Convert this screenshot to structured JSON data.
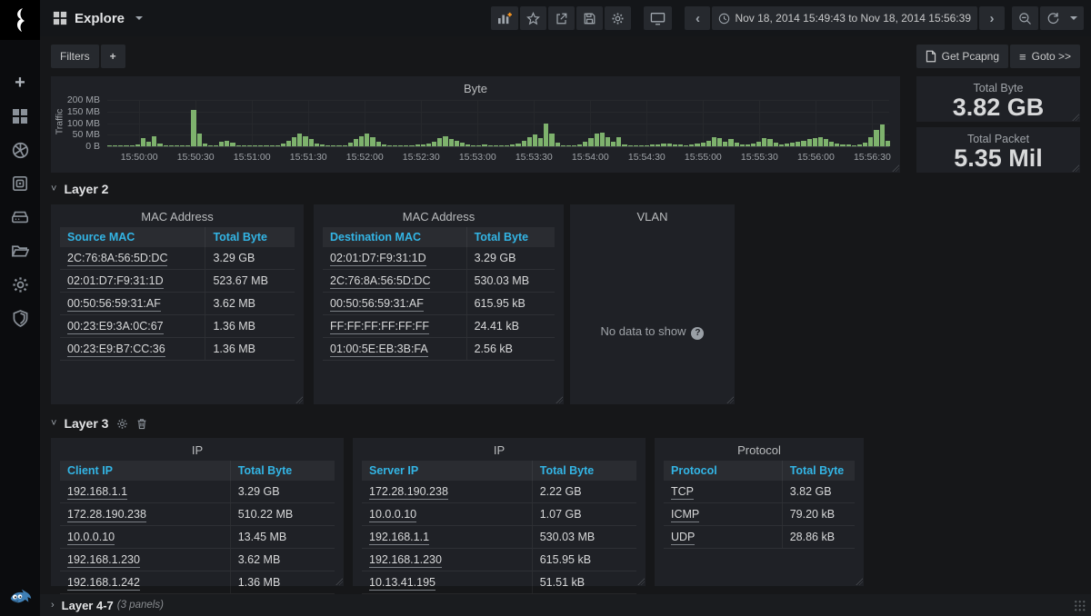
{
  "header": {
    "title": "Explore",
    "time_range": "Nov 18, 2014 15:49:43 to Nov 18, 2014 15:56:39",
    "toolbar_icons": [
      "add-graph",
      "star",
      "share",
      "save",
      "gear",
      "tv-mode",
      "time-back",
      "time-range",
      "time-forward",
      "zoom-out",
      "refresh",
      "refresh-interval-caret"
    ]
  },
  "filters": {
    "label": "Filters",
    "add_label": "+"
  },
  "actions": {
    "get_pcapng": "Get Pcapng",
    "goto": "Goto >>"
  },
  "stats": [
    {
      "title": "Total Byte",
      "value": "3.82 GB"
    },
    {
      "title": "Total Packet",
      "value": "5.35 Mil"
    }
  ],
  "chart_data": {
    "type": "bar",
    "title": "Byte",
    "ylabel": "Traffic",
    "unit": "MB",
    "ylim_mb": [
      0,
      200
    ],
    "y_ticks": [
      "200 MB",
      "150 MB",
      "100 MB",
      "50 MB",
      "0 B"
    ],
    "x_range": "15:49:43 to 15:56:39",
    "x_total_s": 416,
    "x_first_tick_offset_s": 17,
    "x_tick_interval_s": 30,
    "x_ticks": [
      "15:50:00",
      "15:50:30",
      "15:51:00",
      "15:51:30",
      "15:52:00",
      "15:52:30",
      "15:53:00",
      "15:53:30",
      "15:54:00",
      "15:54:30",
      "15:55:00",
      "15:55:30",
      "15:56:00",
      "15:56:30"
    ],
    "grid": true,
    "legend": "none",
    "bar_color": "#7eb26d",
    "values": [
      2,
      3,
      4,
      3,
      5,
      8,
      35,
      20,
      42,
      12,
      5,
      4,
      3,
      4,
      4,
      155,
      55,
      10,
      4,
      3,
      18,
      22,
      15,
      5,
      4,
      3,
      4,
      4,
      3,
      5,
      4,
      10,
      25,
      40,
      55,
      45,
      30,
      12,
      6,
      4,
      5,
      3,
      4,
      15,
      30,
      45,
      55,
      40,
      20,
      8,
      4,
      3,
      5,
      4,
      3,
      6,
      8,
      10,
      20,
      35,
      45,
      30,
      25,
      15,
      8,
      5,
      4,
      6,
      4,
      5,
      3,
      4,
      6,
      12,
      25,
      40,
      50,
      35,
      100,
      55,
      15,
      5,
      4,
      3,
      6,
      20,
      35,
      55,
      60,
      40,
      20,
      40,
      8,
      3,
      2,
      4,
      5,
      6,
      8,
      10,
      12,
      8,
      6,
      5,
      8,
      10,
      15,
      25,
      40,
      35,
      20,
      30,
      15,
      8,
      6,
      10,
      20,
      35,
      30,
      15,
      8,
      10,
      15,
      20,
      25,
      30,
      35,
      40,
      30,
      20,
      12,
      8,
      6,
      5,
      8,
      15,
      40,
      70,
      95,
      25
    ]
  },
  "sections": {
    "layer2": {
      "title": "Layer 2",
      "panels": [
        {
          "title": "MAC Address",
          "table": {
            "columns": [
              "Source MAC",
              "Total Byte"
            ],
            "rows": [
              [
                "2C:76:8A:56:5D:DC",
                "3.29 GB"
              ],
              [
                "02:01:D7:F9:31:1D",
                "523.67 MB"
              ],
              [
                "00:50:56:59:31:AF",
                "3.62 MB"
              ],
              [
                "00:23:E9:3A:0C:67",
                "1.36 MB"
              ],
              [
                "00:23:E9:B7:CC:36",
                "1.36 MB"
              ]
            ]
          }
        },
        {
          "title": "MAC Address",
          "table": {
            "columns": [
              "Destination MAC",
              "Total Byte"
            ],
            "rows": [
              [
                "02:01:D7:F9:31:1D",
                "3.29 GB"
              ],
              [
                "2C:76:8A:56:5D:DC",
                "530.03 MB"
              ],
              [
                "00:50:56:59:31:AF",
                "615.95 kB"
              ],
              [
                "FF:FF:FF:FF:FF:FF",
                "24.41 kB"
              ],
              [
                "01:00:5E:EB:3B:FA",
                "2.56 kB"
              ]
            ]
          }
        },
        {
          "title": "VLAN",
          "empty": "No data to show"
        }
      ]
    },
    "layer3": {
      "title": "Layer 3",
      "panels": [
        {
          "title": "IP",
          "table": {
            "columns": [
              "Client IP",
              "Total Byte"
            ],
            "rows": [
              [
                "192.168.1.1",
                "3.29 GB"
              ],
              [
                "172.28.190.238",
                "510.22 MB"
              ],
              [
                "10.0.0.10",
                "13.45 MB"
              ],
              [
                "192.168.1.230",
                "3.62 MB"
              ],
              [
                "192.168.1.242",
                "1.36 MB"
              ]
            ]
          }
        },
        {
          "title": "IP",
          "table": {
            "columns": [
              "Server IP",
              "Total Byte"
            ],
            "rows": [
              [
                "172.28.190.238",
                "2.22 GB"
              ],
              [
                "10.0.0.10",
                "1.07 GB"
              ],
              [
                "192.168.1.1",
                "530.03 MB"
              ],
              [
                "192.168.1.230",
                "615.95 kB"
              ],
              [
                "10.13.41.195",
                "51.51 kB"
              ]
            ]
          }
        },
        {
          "title": "Protocol",
          "table": {
            "columns": [
              "Protocol",
              "Total Byte"
            ],
            "rows": [
              [
                "TCP",
                "3.82 GB"
              ],
              [
                "ICMP",
                "79.20 kB"
              ],
              [
                "UDP",
                "28.86 kB"
              ]
            ]
          }
        }
      ]
    },
    "layer47": {
      "title": "Layer 4-7",
      "meta": "(3 panels)"
    }
  },
  "colors": {
    "accent_blue": "#33b5e5",
    "bar_green": "#7eb26d",
    "plus_orange": "#f79520",
    "panel_bg": "#1f2126",
    "page_bg": "#161719"
  }
}
